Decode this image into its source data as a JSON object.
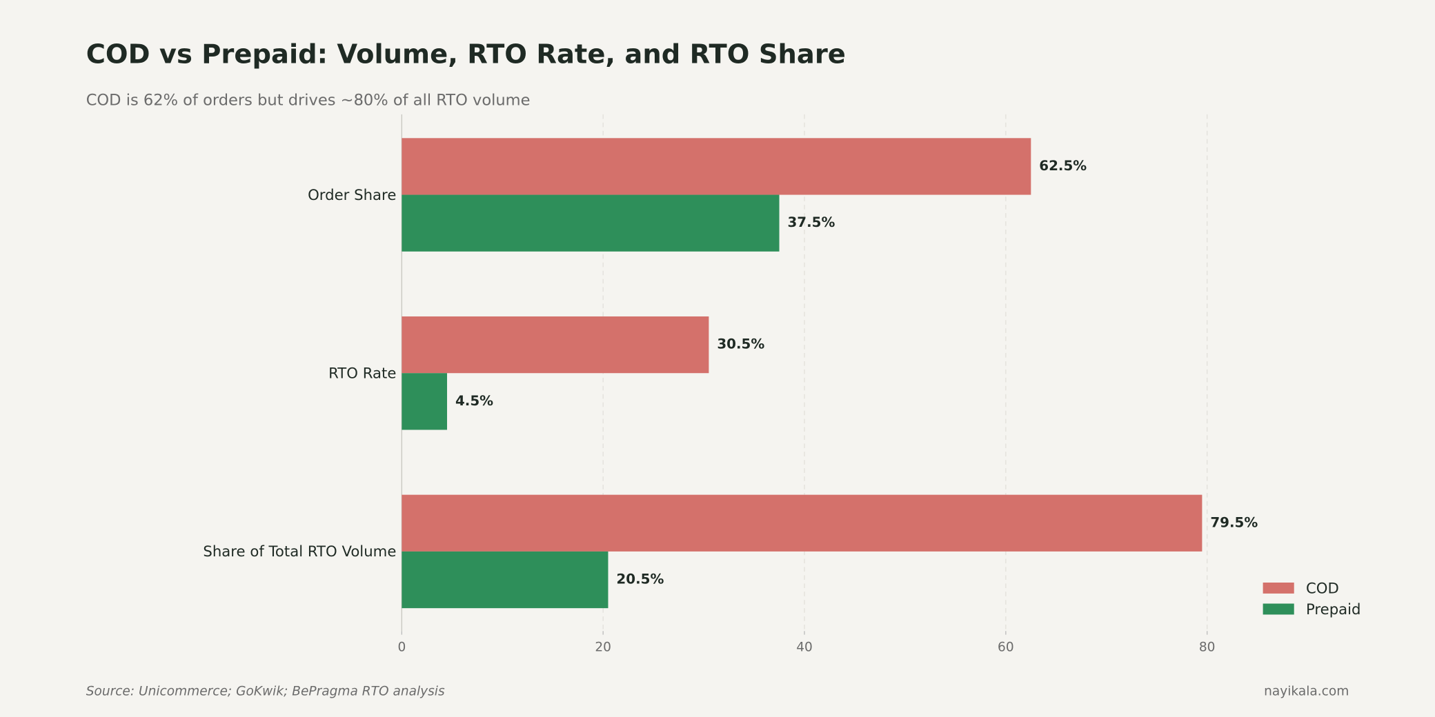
{
  "chart_data": {
    "type": "hbar",
    "title": "COD vs Prepaid: Volume, RTO Rate, and RTO Share",
    "subtitle": "COD is 62% of orders but drives ~80% of all RTO volume",
    "categories": [
      "Order Share",
      "RTO Rate",
      "Share of Total RTO Volume"
    ],
    "series": [
      {
        "name": "COD",
        "color": "#d4716b",
        "values": [
          62.5,
          30.5,
          79.5
        ],
        "value_labels": [
          "62.5%",
          "30.5%",
          "79.5%"
        ]
      },
      {
        "name": "Prepaid",
        "color": "#2e8f5a",
        "values": [
          37.5,
          4.5,
          20.5
        ],
        "value_labels": [
          "37.5%",
          "4.5%",
          "20.5%"
        ]
      }
    ],
    "xlim": [
      0,
      95.4
    ],
    "xticks": [
      0,
      20,
      40,
      60,
      80
    ],
    "grid": true,
    "legend": "lower right",
    "source": "Source: Unicommerce; GoKwik; BePragma RTO analysis",
    "credit": "nayikala.com"
  }
}
